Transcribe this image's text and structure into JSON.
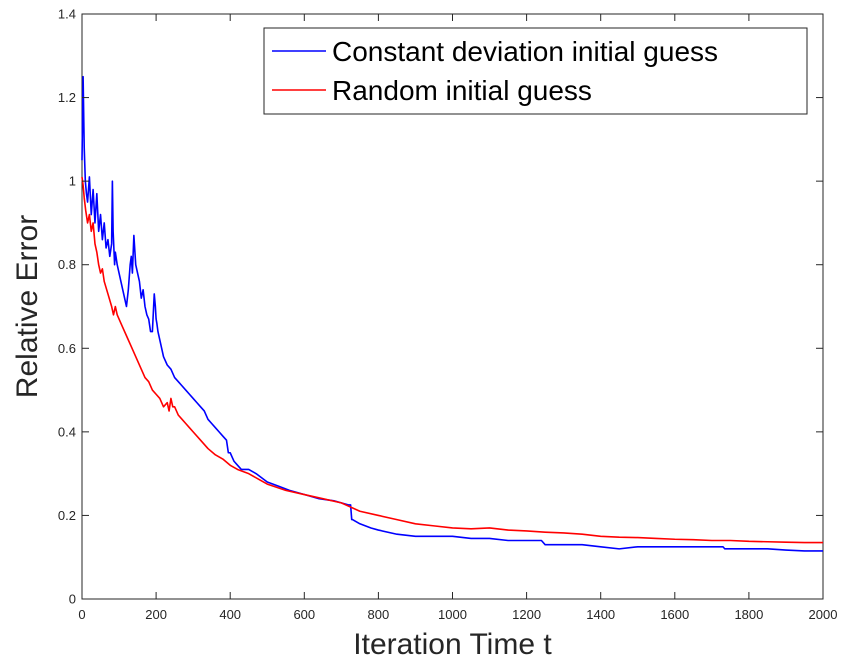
{
  "chart_data": {
    "type": "line",
    "title": "",
    "xlabel": "Iteration Time t",
    "ylabel": "Relative Error",
    "xlim": [
      0,
      2000
    ],
    "ylim": [
      0,
      1.4
    ],
    "xticks": [
      0,
      200,
      400,
      600,
      800,
      1000,
      1200,
      1400,
      1600,
      1800,
      2000
    ],
    "yticks": [
      0,
      0.2,
      0.4,
      0.6,
      0.8,
      1,
      1.2,
      1.4
    ],
    "xtick_labels": [
      "0",
      "200",
      "400",
      "600",
      "800",
      "1000",
      "1200",
      "1400",
      "1600",
      "1800",
      "2000"
    ],
    "ytick_labels": [
      "0",
      "0.2",
      "0.4",
      "0.6",
      "0.8",
      "1",
      "1.2",
      "1.4"
    ],
    "grid": false,
    "legend_position": "top-right",
    "series": [
      {
        "name": "Constant deviation initial guess",
        "color": "#0000ff",
        "x": [
          0,
          3,
          6,
          9,
          12,
          15,
          20,
          25,
          30,
          35,
          40,
          45,
          50,
          55,
          60,
          65,
          70,
          75,
          80,
          82,
          84,
          86,
          88,
          90,
          95,
          100,
          105,
          110,
          115,
          120,
          125,
          130,
          133,
          136,
          140,
          145,
          150,
          155,
          160,
          165,
          170,
          175,
          180,
          185,
          190,
          195,
          198,
          200,
          202,
          205,
          210,
          215,
          220,
          230,
          240,
          250,
          260,
          270,
          280,
          290,
          300,
          310,
          320,
          330,
          340,
          350,
          360,
          370,
          380,
          390,
          395,
          400,
          405,
          410,
          420,
          430,
          450,
          470,
          500,
          530,
          560,
          600,
          640,
          680,
          700,
          720,
          725,
          728,
          730,
          750,
          780,
          800,
          850,
          900,
          950,
          1000,
          1050,
          1100,
          1150,
          1200,
          1240,
          1250,
          1300,
          1350,
          1400,
          1450,
          1500,
          1550,
          1600,
          1650,
          1700,
          1730,
          1735,
          1750,
          1800,
          1850,
          1900,
          1950,
          2000
        ],
        "y": [
          1.05,
          1.25,
          1.08,
          1.0,
          0.97,
          0.95,
          1.01,
          0.92,
          0.98,
          0.9,
          0.97,
          0.88,
          0.92,
          0.86,
          0.9,
          0.84,
          0.86,
          0.82,
          0.85,
          1.0,
          0.88,
          0.84,
          0.8,
          0.83,
          0.8,
          0.78,
          0.76,
          0.74,
          0.72,
          0.7,
          0.74,
          0.8,
          0.82,
          0.78,
          0.87,
          0.8,
          0.78,
          0.76,
          0.72,
          0.74,
          0.7,
          0.68,
          0.67,
          0.64,
          0.64,
          0.73,
          0.7,
          0.67,
          0.66,
          0.64,
          0.62,
          0.6,
          0.58,
          0.56,
          0.55,
          0.53,
          0.52,
          0.51,
          0.5,
          0.49,
          0.48,
          0.47,
          0.46,
          0.45,
          0.43,
          0.42,
          0.41,
          0.4,
          0.39,
          0.38,
          0.35,
          0.35,
          0.34,
          0.33,
          0.32,
          0.31,
          0.31,
          0.3,
          0.28,
          0.27,
          0.26,
          0.25,
          0.24,
          0.235,
          0.23,
          0.225,
          0.225,
          0.19,
          0.19,
          0.18,
          0.17,
          0.165,
          0.155,
          0.15,
          0.15,
          0.15,
          0.145,
          0.145,
          0.14,
          0.14,
          0.14,
          0.13,
          0.13,
          0.13,
          0.125,
          0.12,
          0.125,
          0.125,
          0.125,
          0.125,
          0.125,
          0.125,
          0.12,
          0.12,
          0.12,
          0.12,
          0.117,
          0.115,
          0.115
        ]
      },
      {
        "name": "Random initial guess",
        "color": "#ff0000",
        "x": [
          0,
          3,
          6,
          10,
          15,
          20,
          25,
          30,
          35,
          40,
          45,
          50,
          55,
          60,
          70,
          80,
          85,
          90,
          95,
          100,
          110,
          120,
          130,
          140,
          150,
          160,
          170,
          180,
          190,
          200,
          210,
          220,
          230,
          235,
          240,
          245,
          250,
          260,
          270,
          280,
          290,
          300,
          320,
          340,
          360,
          380,
          400,
          420,
          450,
          480,
          500,
          550,
          600,
          650,
          700,
          750,
          800,
          850,
          900,
          950,
          1000,
          1050,
          1100,
          1150,
          1200,
          1250,
          1300,
          1350,
          1400,
          1450,
          1500,
          1550,
          1600,
          1650,
          1700,
          1750,
          1800,
          1850,
          1900,
          1950,
          2000
        ],
        "y": [
          1.01,
          0.99,
          0.96,
          0.93,
          0.9,
          0.92,
          0.88,
          0.9,
          0.85,
          0.83,
          0.8,
          0.78,
          0.79,
          0.76,
          0.73,
          0.7,
          0.68,
          0.7,
          0.68,
          0.67,
          0.65,
          0.63,
          0.61,
          0.59,
          0.57,
          0.55,
          0.53,
          0.52,
          0.5,
          0.49,
          0.48,
          0.46,
          0.47,
          0.45,
          0.48,
          0.46,
          0.46,
          0.44,
          0.43,
          0.42,
          0.41,
          0.4,
          0.38,
          0.36,
          0.345,
          0.335,
          0.32,
          0.31,
          0.3,
          0.285,
          0.275,
          0.26,
          0.25,
          0.24,
          0.23,
          0.21,
          0.2,
          0.19,
          0.18,
          0.175,
          0.17,
          0.168,
          0.17,
          0.165,
          0.163,
          0.16,
          0.158,
          0.155,
          0.15,
          0.148,
          0.147,
          0.145,
          0.143,
          0.142,
          0.14,
          0.14,
          0.138,
          0.137,
          0.136,
          0.135,
          0.135
        ]
      }
    ]
  }
}
